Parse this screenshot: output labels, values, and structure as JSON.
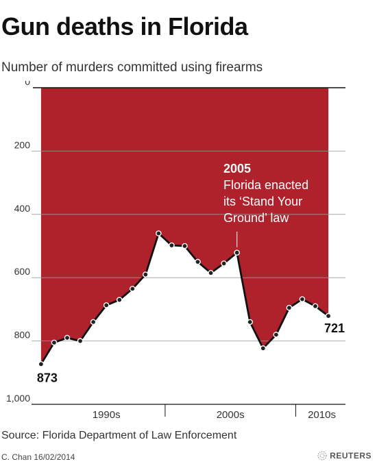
{
  "title": "Gun deaths in Florida",
  "subtitle": "Number of murders committed using firearms",
  "source": "Source: Florida Department of Law Enforcement",
  "credit": "C. Chan  16/02/2014",
  "logo_text": "REUTERS",
  "logo_icon": "reuters-dots-logo",
  "colors": {
    "fill": "#b0222b",
    "line": "#111111",
    "grid": "#999999"
  },
  "chart_data": {
    "type": "area",
    "title": "Gun deaths in Florida",
    "subtitle": "Number of murders committed using firearms",
    "y_inverted": true,
    "ylim": [
      0,
      1000
    ],
    "y_ticks": [
      0,
      200,
      400,
      600,
      800,
      1000
    ],
    "y_tick_labels": [
      "0",
      "200",
      "400",
      "600",
      "800",
      "1,000"
    ],
    "xlim": [
      1989.9,
      2013.1
    ],
    "x_dividers": [
      1999.5,
      2009.5
    ],
    "x_period_labels": [
      {
        "label": "1990s",
        "center": 1995
      },
      {
        "label": "2000s",
        "center": 2004.5
      },
      {
        "label": "2010s",
        "center": 2011.5
      }
    ],
    "series": [
      {
        "x": [
          1990,
          1991,
          1992,
          1993,
          1994,
          1995,
          1996,
          1997,
          1998,
          1999,
          2000,
          2001,
          2002,
          2003,
          2004,
          2005,
          2006,
          2007,
          2008,
          2009,
          2010,
          2011,
          2012
        ],
        "values": [
          873,
          805,
          790,
          800,
          740,
          687,
          670,
          635,
          590,
          460,
          498,
          500,
          550,
          585,
          555,
          521,
          740,
          823,
          780,
          695,
          668,
          690,
          721
        ]
      }
    ],
    "data_labels": [
      {
        "x": 1990,
        "text": "873"
      },
      {
        "x": 2012,
        "text": "721"
      }
    ],
    "annotation": {
      "x": 2005,
      "year": "2005",
      "lines": [
        "Florida enacted",
        "its ‘Stand Your",
        "Ground’ law"
      ]
    }
  }
}
